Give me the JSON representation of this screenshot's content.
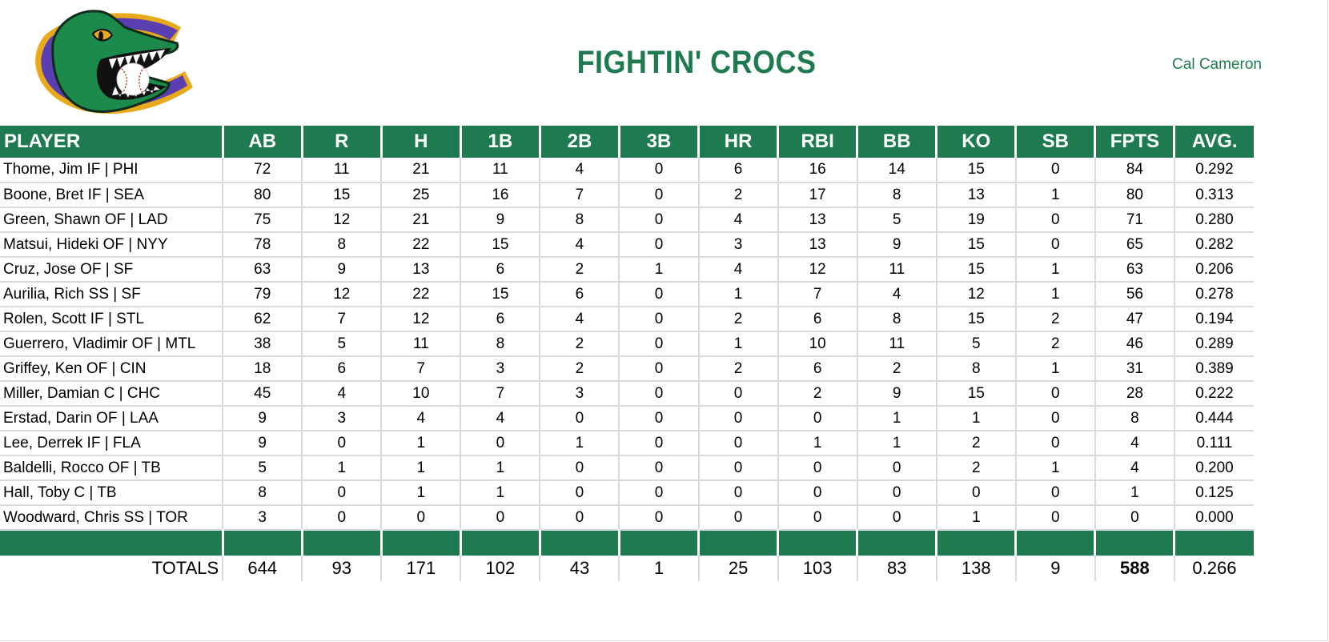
{
  "header": {
    "team_name": "FIGHTIN' CROCS",
    "owner_name": "Cal Cameron",
    "logo": "crocodile-c-logo",
    "accent_color": "#1e7a4f"
  },
  "table": {
    "columns": [
      "PLAYER",
      "AB",
      "R",
      "H",
      "1B",
      "2B",
      "3B",
      "HR",
      "RBI",
      "BB",
      "KO",
      "SB",
      "FPTS",
      "AVG."
    ],
    "rows": [
      [
        "Thome, Jim IF | PHI",
        "72",
        "11",
        "21",
        "11",
        "4",
        "0",
        "6",
        "16",
        "14",
        "15",
        "0",
        "84",
        "0.292"
      ],
      [
        "Boone, Bret IF | SEA",
        "80",
        "15",
        "25",
        "16",
        "7",
        "0",
        "2",
        "17",
        "8",
        "13",
        "1",
        "80",
        "0.313"
      ],
      [
        "Green, Shawn OF | LAD",
        "75",
        "12",
        "21",
        "9",
        "8",
        "0",
        "4",
        "13",
        "5",
        "19",
        "0",
        "71",
        "0.280"
      ],
      [
        "Matsui, Hideki OF | NYY",
        "78",
        "8",
        "22",
        "15",
        "4",
        "0",
        "3",
        "13",
        "9",
        "15",
        "0",
        "65",
        "0.282"
      ],
      [
        "Cruz, Jose OF | SF",
        "63",
        "9",
        "13",
        "6",
        "2",
        "1",
        "4",
        "12",
        "11",
        "15",
        "1",
        "63",
        "0.206"
      ],
      [
        "Aurilia, Rich SS | SF",
        "79",
        "12",
        "22",
        "15",
        "6",
        "0",
        "1",
        "7",
        "4",
        "12",
        "1",
        "56",
        "0.278"
      ],
      [
        "Rolen, Scott IF | STL",
        "62",
        "7",
        "12",
        "6",
        "4",
        "0",
        "2",
        "6",
        "8",
        "15",
        "2",
        "47",
        "0.194"
      ],
      [
        "Guerrero, Vladimir OF | MTL",
        "38",
        "5",
        "11",
        "8",
        "2",
        "0",
        "1",
        "10",
        "11",
        "5",
        "2",
        "46",
        "0.289"
      ],
      [
        "Griffey, Ken OF | CIN",
        "18",
        "6",
        "7",
        "3",
        "2",
        "0",
        "2",
        "6",
        "2",
        "8",
        "1",
        "31",
        "0.389"
      ],
      [
        "Miller, Damian C | CHC",
        "45",
        "4",
        "10",
        "7",
        "3",
        "0",
        "0",
        "2",
        "9",
        "15",
        "0",
        "28",
        "0.222"
      ],
      [
        "Erstad, Darin OF | LAA",
        "9",
        "3",
        "4",
        "4",
        "0",
        "0",
        "0",
        "0",
        "1",
        "1",
        "0",
        "8",
        "0.444"
      ],
      [
        "Lee, Derrek IF | FLA",
        "9",
        "0",
        "1",
        "0",
        "1",
        "0",
        "0",
        "1",
        "1",
        "2",
        "0",
        "4",
        "0.111"
      ],
      [
        "Baldelli, Rocco OF | TB",
        "5",
        "1",
        "1",
        "1",
        "0",
        "0",
        "0",
        "0",
        "0",
        "2",
        "1",
        "4",
        "0.200"
      ],
      [
        "Hall, Toby C | TB",
        "8",
        "0",
        "1",
        "1",
        "0",
        "0",
        "0",
        "0",
        "0",
        "0",
        "0",
        "1",
        "0.125"
      ],
      [
        "Woodward, Chris SS | TOR",
        "3",
        "0",
        "0",
        "0",
        "0",
        "0",
        "0",
        "0",
        "0",
        "1",
        "0",
        "0",
        "0.000"
      ]
    ],
    "totals": [
      "TOTALS",
      "644",
      "93",
      "171",
      "102",
      "43",
      "1",
      "25",
      "103",
      "83",
      "138",
      "9",
      "588",
      "0.266"
    ]
  }
}
